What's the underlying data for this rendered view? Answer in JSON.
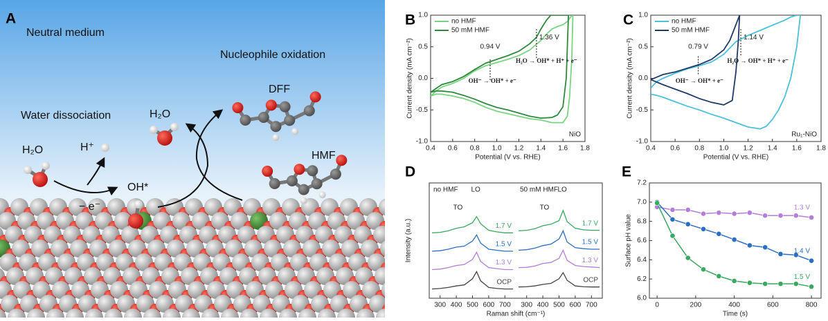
{
  "schematic": {
    "label": "A",
    "medium": "Neutral medium",
    "oxidation": "Nucleophile oxidation",
    "product": "DFF",
    "dissociation": "Water dissociation",
    "water_top": "H₂O",
    "water_left": "H₂O",
    "proton": "H⁺",
    "reactant": "HMF",
    "intermediate": "OH*",
    "electron": "− e⁻"
  },
  "chart_data": [
    {
      "type": "line",
      "label": "B",
      "xlabel": "Potential (V vs. RHE)",
      "ylabel": "Current density (mA cm⁻²)",
      "xlim": [
        0.4,
        1.8
      ],
      "ylim": [
        -1,
        1
      ],
      "xticks": [
        0.4,
        0.6,
        0.8,
        {
          "value": 1,
          "label": "1.0"
        },
        1.2,
        1.4,
        1.6,
        1.8
      ],
      "yticks": [
        {
          "value": -1,
          "label": "-1.0"
        },
        -0.5,
        {
          "value": 0,
          "label": "0.0"
        },
        0.5,
        {
          "value": 1,
          "label": "1.0"
        }
      ],
      "legend": "upper left",
      "sample": "NiO",
      "series": [
        {
          "name": "no HMF",
          "color": "#7bd382",
          "x": [
            0.4,
            0.45,
            0.5,
            0.6,
            0.7,
            0.8,
            0.9,
            1.0,
            1.1,
            1.2,
            1.3,
            1.4,
            1.45,
            1.5,
            1.55,
            1.6,
            1.64,
            1.66,
            1.68,
            1.69,
            1.68,
            1.66,
            1.64,
            1.6,
            1.5,
            1.4,
            1.3,
            1.2,
            1.1,
            1.0,
            0.9,
            0.8,
            0.7,
            0.6,
            0.5,
            0.45,
            0.4
          ],
          "values": [
            -0.28,
            -0.2,
            -0.14,
            -0.08,
            0.0,
            0.12,
            0.2,
            0.25,
            0.3,
            0.36,
            0.45,
            0.6,
            0.7,
            0.78,
            0.82,
            0.85,
            0.9,
            0.95,
            0.99,
            1.0,
            0.3,
            -0.3,
            -0.6,
            -0.7,
            -0.7,
            -0.66,
            -0.64,
            -0.6,
            -0.56,
            -0.52,
            -0.46,
            -0.38,
            -0.32,
            -0.28,
            -0.25,
            -0.25,
            -0.28
          ]
        },
        {
          "name": "50 mM HMF",
          "color": "#2e8b3e",
          "x": [
            0.4,
            0.45,
            0.5,
            0.6,
            0.7,
            0.8,
            0.9,
            1.0,
            1.1,
            1.2,
            1.3,
            1.36,
            1.4,
            1.45,
            1.49,
            1.65,
            1.63,
            1.6,
            1.55,
            1.5,
            1.4,
            1.3,
            1.2,
            1.1,
            1.0,
            0.9,
            0.8,
            0.7,
            0.6,
            0.5,
            0.45,
            0.4
          ],
          "values": [
            -0.22,
            -0.16,
            -0.1,
            -0.05,
            0.03,
            0.14,
            0.24,
            0.3,
            0.36,
            0.43,
            0.55,
            0.65,
            0.78,
            0.92,
            1.0,
            1.0,
            0.0,
            -0.45,
            -0.58,
            -0.62,
            -0.63,
            -0.6,
            -0.55,
            -0.5,
            -0.46,
            -0.4,
            -0.33,
            -0.27,
            -0.22,
            -0.2,
            -0.2,
            -0.22
          ]
        }
      ],
      "annotations": [
        {
          "x": 0.94,
          "label": "0.94 V"
        },
        {
          "x": 1.36,
          "label": "1.36 V"
        }
      ],
      "notes": [
        "OH⁻ → OH* + e⁻",
        "H₂O → OH* + H⁺ + e⁻"
      ]
    },
    {
      "type": "line",
      "label": "C",
      "xlabel": "Potential (V vs. RHE)",
      "ylabel": "Current density (mA cm⁻²)",
      "xlim": [
        0.4,
        1.8
      ],
      "ylim": [
        -1,
        1
      ],
      "xticks": [
        0.4,
        0.6,
        0.8,
        {
          "value": 1,
          "label": "1.0"
        },
        1.2,
        1.4,
        1.6,
        1.8
      ],
      "yticks": [
        {
          "value": -1,
          "label": "-1.0"
        },
        -0.5,
        {
          "value": 0,
          "label": "0.0"
        },
        0.5,
        {
          "value": 1,
          "label": "1.0"
        }
      ],
      "legend": "upper left",
      "sample": "Ru₁-NiO",
      "series": [
        {
          "name": "no HMF",
          "color": "#4cc0da",
          "x": [
            0.4,
            0.45,
            0.5,
            0.6,
            0.7,
            0.8,
            0.9,
            1.0,
            1.1,
            1.2,
            1.3,
            1.4,
            1.5,
            1.55,
            1.6,
            1.63,
            1.6,
            1.55,
            1.5,
            1.45,
            1.4,
            1.35,
            1.3,
            1.2,
            1.1,
            1.0,
            0.9,
            0.8,
            0.7,
            0.6,
            0.5,
            0.45,
            0.4
          ],
          "values": [
            -0.15,
            -0.05,
            0.0,
            0.08,
            0.15,
            0.2,
            0.26,
            0.38,
            0.58,
            0.68,
            0.76,
            0.84,
            0.92,
            0.97,
            1.0,
            1.0,
            0.5,
            0.0,
            -0.3,
            -0.5,
            -0.65,
            -0.76,
            -0.8,
            -0.77,
            -0.7,
            -0.63,
            -0.57,
            -0.5,
            -0.44,
            -0.37,
            -0.3,
            -0.27,
            -0.25
          ]
        },
        {
          "name": "50 mM HMF",
          "color": "#1f3a68",
          "x": [
            0.4,
            0.45,
            0.5,
            0.6,
            0.7,
            0.8,
            0.9,
            1.0,
            1.05,
            1.1,
            1.13,
            1.12,
            1.1,
            1.07,
            1.0,
            0.9,
            0.8,
            0.7,
            0.6,
            0.5,
            0.45,
            0.4
          ],
          "values": [
            -0.02,
            0.02,
            0.06,
            0.1,
            0.16,
            0.22,
            0.3,
            0.45,
            0.6,
            0.85,
            1.0,
            0.6,
            0.1,
            -0.35,
            -0.42,
            -0.38,
            -0.32,
            -0.24,
            -0.17,
            -0.1,
            -0.06,
            -0.02
          ]
        }
      ],
      "annotations": [
        {
          "x": 0.79,
          "label": "0.79 V"
        },
        {
          "x": 1.14,
          "label": "1.14 V"
        }
      ],
      "notes": [
        "OH⁻ → OH* + e⁻",
        "H₂O → OH* + H⁺ + e⁻"
      ]
    },
    {
      "type": "spectra",
      "label": "D",
      "xlabel": "Raman shift (cm⁻¹)",
      "ylabel": "Intensity (a.u.)",
      "xlim": [
        250,
        750
      ],
      "xticks": [
        300,
        400,
        500,
        600,
        700
      ],
      "ylim": [
        0,
        9
      ],
      "x": [
        250,
        300,
        350,
        400,
        450,
        500,
        525,
        550,
        600,
        650,
        700,
        750
      ],
      "peaks": [
        {
          "x": 410,
          "label": "TO"
        },
        {
          "x": 520,
          "label": "LO"
        }
      ],
      "panels": [
        {
          "title": "no HMF",
          "series": [
            {
              "name": "1.7 V",
              "color": "#3aa860",
              "values": [
                6.0,
                6.05,
                6.2,
                6.45,
                6.6,
                7.0,
                7.6,
                6.9,
                6.25,
                6.1,
                6.0,
                6.0
              ]
            },
            {
              "name": "1.5 V",
              "color": "#2a6fc4",
              "values": [
                4.2,
                4.25,
                4.4,
                4.6,
                4.7,
                5.2,
                5.8,
                5.0,
                4.4,
                4.3,
                4.2,
                4.2
              ]
            },
            {
              "name": "1.3 V",
              "color": "#b27ddb",
              "values": [
                2.4,
                2.45,
                2.6,
                2.8,
                2.9,
                3.4,
                4.1,
                3.2,
                2.6,
                2.5,
                2.4,
                2.4
              ]
            },
            {
              "name": "OCP",
              "color": "#444444",
              "values": [
                0.5,
                0.55,
                0.65,
                0.8,
                0.9,
                1.5,
                2.2,
                1.3,
                0.65,
                0.55,
                0.5,
                0.5
              ]
            }
          ]
        },
        {
          "title": "50 mM HMF",
          "series": [
            {
              "name": "1.7 V",
              "color": "#3aa860",
              "values": [
                6.2,
                6.25,
                6.4,
                6.7,
                6.85,
                7.2,
                8.2,
                7.1,
                6.45,
                6.3,
                6.25,
                6.25
              ]
            },
            {
              "name": "1.5 V",
              "color": "#2a6fc4",
              "values": [
                4.3,
                4.35,
                4.5,
                4.75,
                4.9,
                5.4,
                6.2,
                5.1,
                4.55,
                4.45,
                4.4,
                4.4
              ]
            },
            {
              "name": "1.3 V",
              "color": "#b27ddb",
              "values": [
                2.6,
                2.62,
                2.75,
                3.0,
                3.1,
                3.5,
                4.3,
                3.3,
                2.8,
                2.7,
                2.65,
                2.6
              ]
            },
            {
              "name": "OCP",
              "color": "#444444",
              "values": [
                0.7,
                0.72,
                0.8,
                0.95,
                1.05,
                1.5,
                2.1,
                1.35,
                0.8,
                0.72,
                0.7,
                0.7
              ]
            }
          ]
        }
      ]
    },
    {
      "type": "scatter-line",
      "label": "E",
      "xlabel": "Time (s)",
      "ylabel": "Surface pH value",
      "xlim": [
        -40,
        850
      ],
      "ylim": [
        6,
        7.2
      ],
      "xticks": [
        0,
        200,
        400,
        600,
        800
      ],
      "yticks": [
        {
          "value": 6,
          "label": "6.0"
        },
        6.2,
        6.4,
        6.6,
        6.8,
        {
          "value": 7,
          "label": "7.0"
        },
        7.2
      ],
      "x": [
        0,
        80,
        160,
        240,
        320,
        400,
        480,
        560,
        640,
        720,
        800
      ],
      "series": [
        {
          "name": "1.3 V",
          "color": "#b27ddb",
          "values": [
            6.95,
            6.92,
            6.92,
            6.88,
            6.89,
            6.88,
            6.89,
            6.86,
            6.86,
            6.86,
            6.84
          ]
        },
        {
          "name": "1.4 V",
          "color": "#2a6fc4",
          "values": [
            7.0,
            6.82,
            6.77,
            6.72,
            6.67,
            6.61,
            6.55,
            6.53,
            6.46,
            6.45,
            6.39
          ]
        },
        {
          "name": "1.5 V",
          "color": "#3aa860",
          "values": [
            6.99,
            6.65,
            6.42,
            6.3,
            6.23,
            6.18,
            6.16,
            6.15,
            6.15,
            6.15,
            6.12
          ]
        }
      ]
    }
  ]
}
